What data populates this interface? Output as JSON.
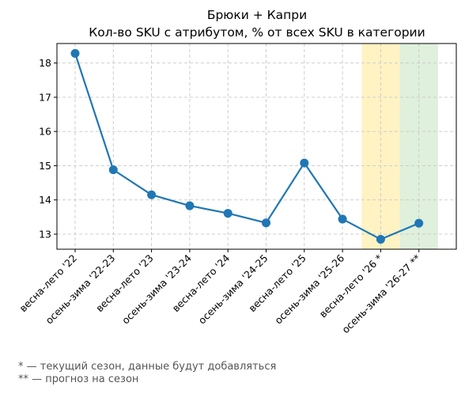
{
  "chart_data": {
    "type": "line",
    "title": "Брюки + Капри",
    "subtitle": "Кол-во SKU с атрибутом, % от всех SKU в категории",
    "xlabel": "",
    "ylabel": "",
    "categories": [
      "весна-лето '22",
      "осень-зима '22-23",
      "весна-лето '23",
      "осень-зима '23-24",
      "весна-лето '24",
      "осень-зима '24-25",
      "весна-лето '25",
      "осень-зима '25-26",
      "весна-лето '26 *",
      "осень-зима '26-27 **"
    ],
    "series": [
      {
        "values": [
          18.28,
          14.88,
          14.15,
          13.83,
          13.61,
          13.33,
          15.08,
          13.44,
          12.85,
          13.32
        ]
      }
    ],
    "ylim": [
      12.56,
      18.57
    ],
    "yticks": [
      13,
      14,
      15,
      16,
      17,
      18
    ],
    "grid": true,
    "line_color": "#1f77b4",
    "highlight_regions": [
      {
        "category": "весна-лето '26 *",
        "color": "#fff3c4"
      },
      {
        "category": "осень-зима '26-27 **",
        "color": "#dff0dc"
      }
    ]
  },
  "footnotes": [
    "* — текущий сезон, данные будут добавляться",
    "** — прогноз на сезон"
  ]
}
